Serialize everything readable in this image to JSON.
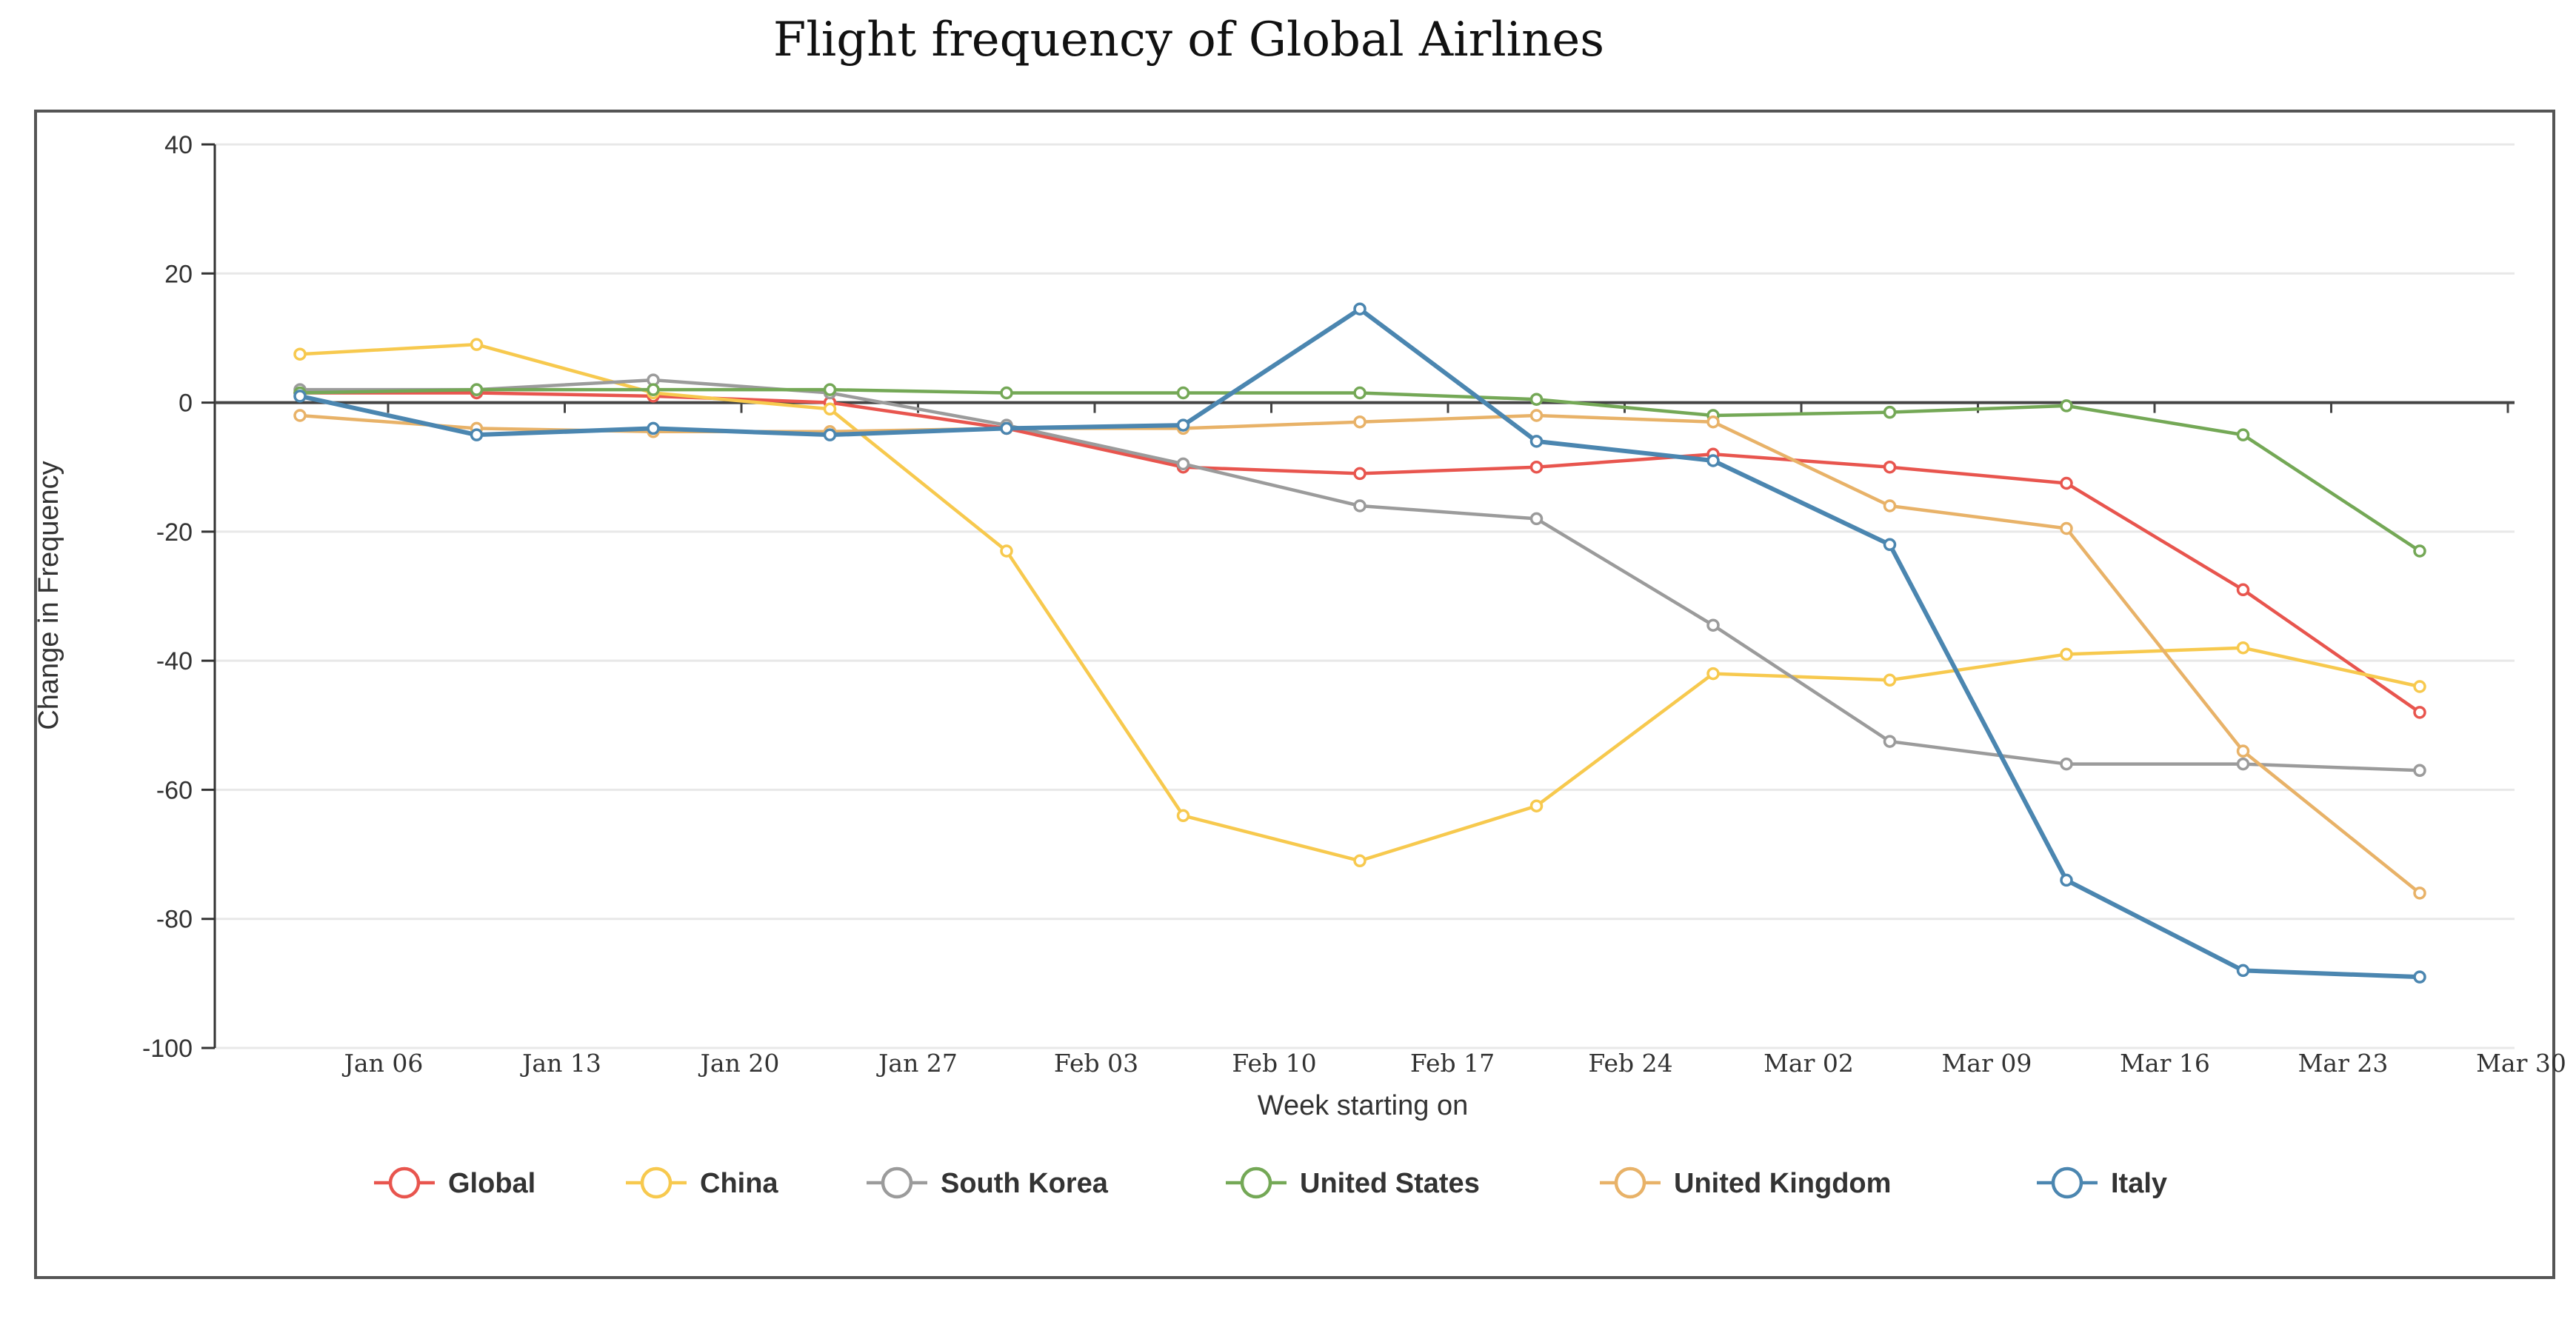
{
  "chart_data": {
    "type": "line",
    "title": "Flight frequency of Global Airlines",
    "xlabel": "Week starting on",
    "ylabel": "Change in Frequency",
    "ylim": [
      -100,
      40
    ],
    "yticks": [
      40,
      20,
      0,
      -20,
      -40,
      -60,
      -80,
      -100
    ],
    "ytick_labels": [
      "40",
      "20",
      "0",
      "-20",
      "-40",
      "-60",
      "-80",
      "-100"
    ],
    "categories": [
      "Jan 06",
      "Jan 13",
      "Jan 20",
      "Jan 27",
      "Feb 03",
      "Feb 10",
      "Feb 17",
      "Feb 24",
      "Mar 02",
      "Mar 09",
      "Mar 16",
      "Mar 23",
      "Mar 30"
    ],
    "grid": true,
    "legend_position": "bottom",
    "series": [
      {
        "name": "Global",
        "color": "#e8554e",
        "values": [
          1.5,
          1.5,
          1,
          0,
          -4,
          -10,
          -11,
          -10,
          -8,
          -10,
          -12.5,
          -29,
          -48
        ]
      },
      {
        "name": "China",
        "color": "#f7c94e",
        "values": [
          7.5,
          9,
          1.5,
          -1,
          -23,
          -64,
          -71,
          -62.5,
          -42,
          -43,
          -39,
          -38,
          -44
        ]
      },
      {
        "name": "South Korea",
        "color": "#9b9b9b",
        "values": [
          2,
          2,
          3.5,
          1.5,
          -3.5,
          -9.5,
          -16,
          -18,
          -34.5,
          -52.5,
          -56,
          -56,
          -57
        ]
      },
      {
        "name": "United States",
        "color": "#74a856",
        "values": [
          1.5,
          2,
          2,
          2,
          1.5,
          1.5,
          1.5,
          0.5,
          -2,
          -1.5,
          -0.5,
          -5,
          -23
        ]
      },
      {
        "name": "United Kingdom",
        "color": "#e8b268",
        "values": [
          -2,
          -4,
          -4.5,
          -4.5,
          -4,
          -4,
          -3,
          -2,
          -3,
          -16,
          -19.5,
          -54,
          -76
        ]
      },
      {
        "name": "Italy",
        "color": "#4b86b0",
        "values": [
          1,
          -5,
          -4,
          -5,
          -4,
          -3.5,
          14.5,
          -6,
          -9,
          -22,
          -74,
          -88,
          -89
        ]
      }
    ]
  }
}
